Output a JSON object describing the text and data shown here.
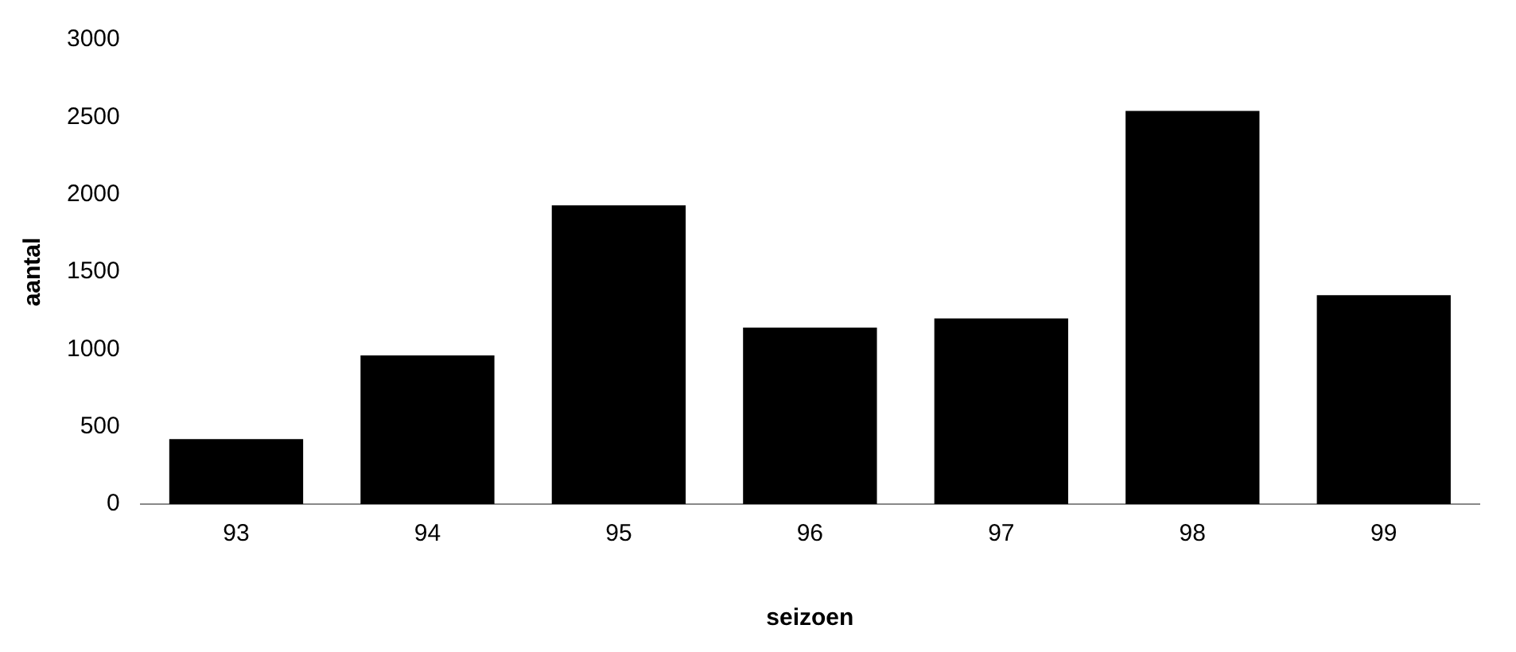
{
  "chart_data": {
    "type": "bar",
    "xlabel": "seizoen",
    "ylabel": "aantal",
    "categories": [
      "93",
      "94",
      "95",
      "96",
      "97",
      "98",
      "99"
    ],
    "values": [
      420,
      960,
      1930,
      1140,
      1200,
      2540,
      1350
    ],
    "color": "#000000",
    "ylim": [
      0,
      3000
    ],
    "yticks": [
      0,
      500,
      1000,
      1500,
      2000,
      2500,
      3000
    ],
    "grid": false,
    "legend": false
  }
}
